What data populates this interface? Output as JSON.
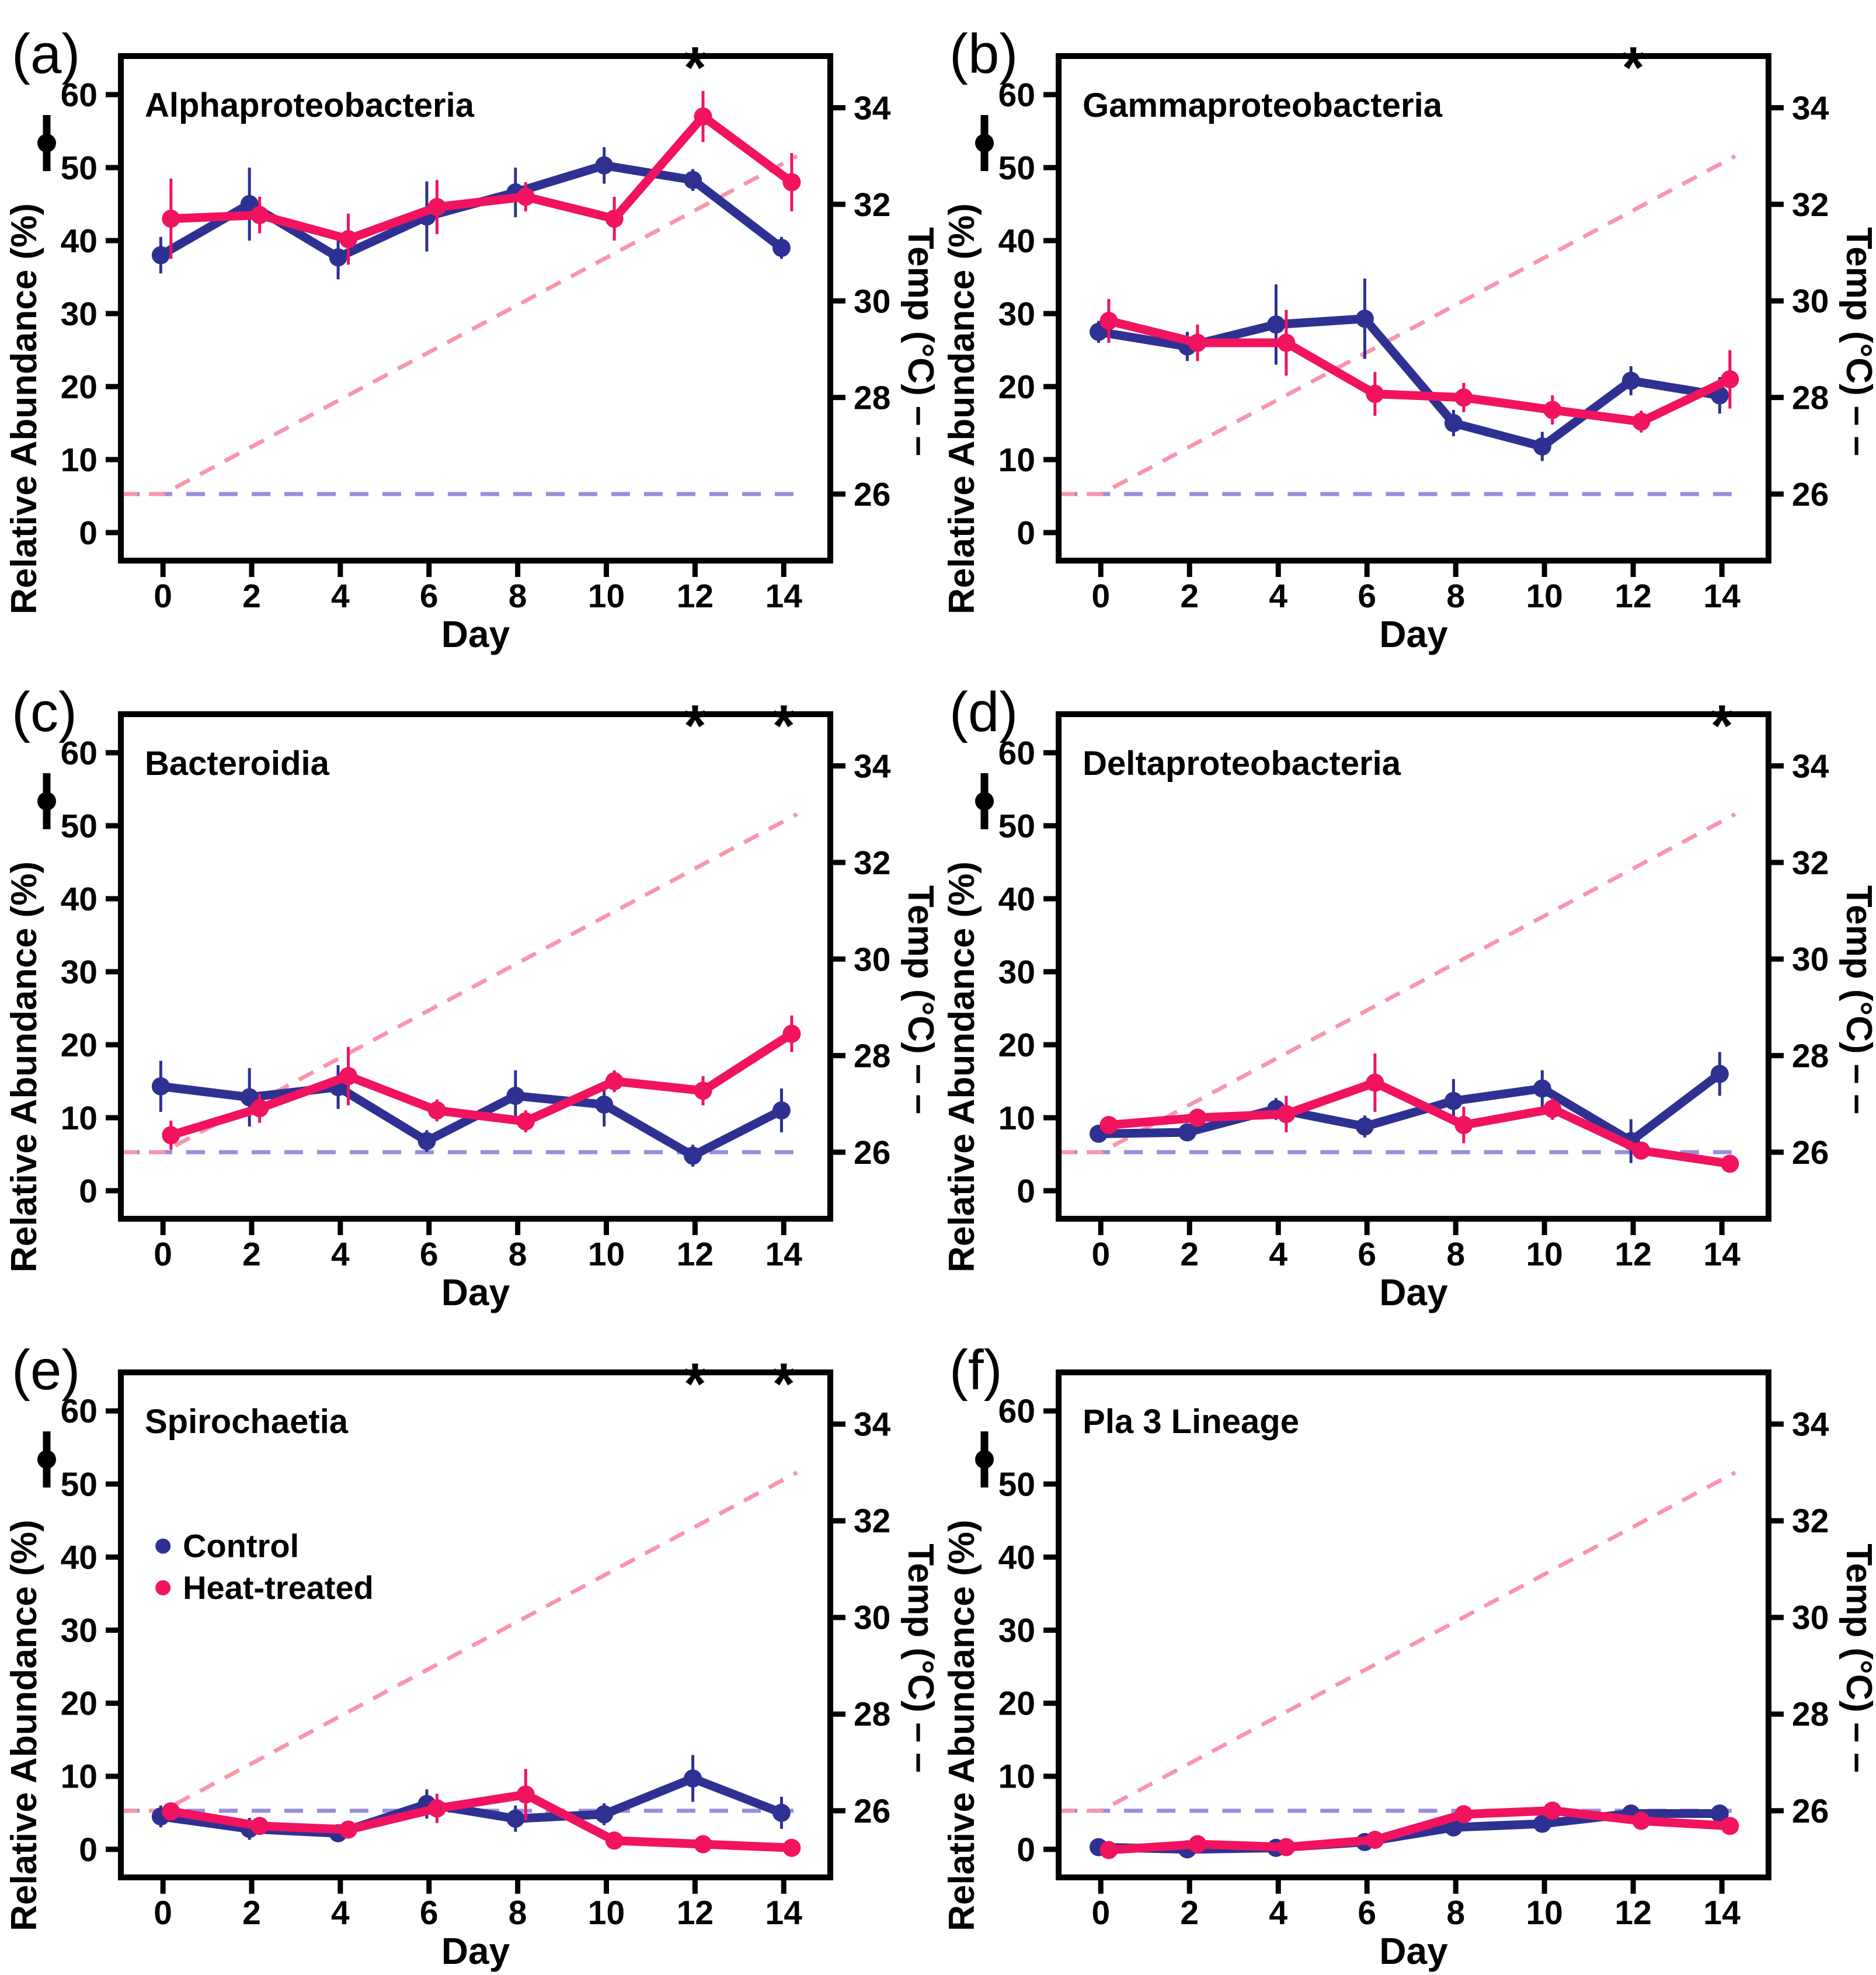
{
  "axes": {
    "xlabel": "Day",
    "ylabel": "Relative Abundance (%)",
    "y2label": "Temp (°C) – –",
    "xticks": [
      0,
      2,
      4,
      6,
      8,
      10,
      12,
      14
    ],
    "yticks": [
      0,
      10,
      20,
      30,
      40,
      50,
      60
    ],
    "y2ticks": [
      26,
      28,
      30,
      32,
      34
    ],
    "xlim": [
      -0.95,
      15.05
    ],
    "ylim": [
      -3.84,
      65.3
    ],
    "grid": false,
    "y2_mapping": {
      "abundance_at_26C": 5.28,
      "abundance_per_degC": 6.615
    }
  },
  "colors": {
    "control": "#2e3192",
    "heat_treated": "#f1135f",
    "temp_ramp": "#f996ab",
    "temp_constant": "#998eda",
    "axis": "#000000"
  },
  "legend": {
    "panel": "(e)",
    "position": "upper-left",
    "items": [
      {
        "label": "Control",
        "color": "#2e3192"
      },
      {
        "label": "Heat-treated",
        "color": "#f1135f"
      }
    ]
  },
  "errorbar_key_icon": "point-with-error-bar-icon",
  "temperature": {
    "ramp": {
      "x": [
        -0.95,
        0,
        14.3
      ],
      "temp_c": [
        26,
        26,
        33
      ],
      "style": "dashed",
      "color": "#f996ab"
    },
    "constant": {
      "x": [
        -0.95,
        14.3
      ],
      "temp_c": [
        26,
        26
      ],
      "style": "dashed",
      "color": "#998eda"
    }
  },
  "chart_data": [
    {
      "type": "line",
      "panel_tag": "(a)",
      "title": "Alphaproteobacteria",
      "x": [
        0,
        2,
        4,
        6,
        8,
        10,
        12,
        14
      ],
      "significance_days": [
        12
      ],
      "show_legend": false,
      "series": [
        {
          "name": "Control",
          "color": "#2e3192",
          "values": [
            38,
            45,
            37.7,
            43.3,
            46.6,
            50.3,
            48.3,
            39
          ],
          "errors": [
            2.5,
            5,
            3,
            4.8,
            3.4,
            2.5,
            1.5,
            1.5
          ]
        },
        {
          "name": "Heat-treated",
          "color": "#f1135f",
          "values": [
            43,
            43.5,
            40.2,
            44.6,
            46,
            43,
            57,
            48
          ],
          "errors": [
            5.5,
            2.5,
            3.5,
            3.7,
            2,
            3,
            3.5,
            4
          ]
        }
      ]
    },
    {
      "type": "line",
      "panel_tag": "(b)",
      "title": "Gammaproteobacteria",
      "x": [
        0,
        2,
        4,
        6,
        8,
        10,
        12,
        14
      ],
      "significance_days": [
        12
      ],
      "show_legend": false,
      "series": [
        {
          "name": "Control",
          "color": "#2e3192",
          "values": [
            27.5,
            25.5,
            28.5,
            29.3,
            15,
            11.8,
            20.8,
            18.8
          ],
          "errors": [
            1.5,
            2,
            5.5,
            5.5,
            1.8,
            2,
            2,
            2.5
          ]
        },
        {
          "name": "Heat-treated",
          "color": "#f1135f",
          "values": [
            29,
            26,
            26,
            19,
            18.5,
            16.8,
            15.2,
            21
          ],
          "errors": [
            3,
            2.5,
            4.5,
            3,
            2,
            2,
            1.5,
            4
          ]
        }
      ]
    },
    {
      "type": "line",
      "panel_tag": "(c)",
      "title": "Bacteroidia",
      "x": [
        0,
        2,
        4,
        6,
        8,
        10,
        12,
        14
      ],
      "significance_days": [
        12,
        14
      ],
      "show_legend": false,
      "series": [
        {
          "name": "Control",
          "color": "#2e3192",
          "values": [
            14.3,
            12.8,
            14.2,
            6.8,
            13,
            11.8,
            4.8,
            11
          ],
          "errors": [
            3.5,
            4,
            3,
            1.5,
            3.5,
            3,
            1.5,
            3
          ]
        },
        {
          "name": "Heat-treated",
          "color": "#f1135f",
          "values": [
            7.6,
            11.3,
            15.7,
            11,
            9.5,
            15,
            13.7,
            21.5
          ],
          "errors": [
            2,
            2,
            4,
            1.5,
            1.5,
            1.5,
            2,
            2.5
          ]
        }
      ]
    },
    {
      "type": "line",
      "panel_tag": "(d)",
      "title": "Deltaproteobacteria",
      "x": [
        0,
        2,
        4,
        6,
        8,
        10,
        12,
        14
      ],
      "significance_days": [
        14
      ],
      "show_legend": false,
      "series": [
        {
          "name": "Control",
          "color": "#2e3192",
          "values": [
            7.8,
            8,
            11.2,
            8.8,
            12.3,
            14,
            6.8,
            16
          ],
          "errors": [
            1,
            1,
            1.5,
            1.5,
            3,
            2.5,
            3,
            3
          ]
        },
        {
          "name": "Heat-treated",
          "color": "#f1135f",
          "values": [
            9,
            10,
            10.5,
            14.8,
            9,
            11.2,
            5.5,
            3.7
          ],
          "errors": [
            1,
            1,
            2.5,
            4,
            2.5,
            1.5,
            1,
            1
          ]
        }
      ]
    },
    {
      "type": "line",
      "panel_tag": "(e)",
      "title": "Spirochaetia",
      "x": [
        0,
        2,
        4,
        6,
        8,
        10,
        12,
        14
      ],
      "significance_days": [
        12,
        14
      ],
      "show_legend": true,
      "series": [
        {
          "name": "Control",
          "color": "#2e3192",
          "values": [
            4.5,
            2.8,
            2.2,
            6.2,
            4.2,
            4.8,
            9.7,
            5
          ],
          "errors": [
            1.5,
            1.5,
            0.5,
            2,
            1.8,
            1.5,
            3.2,
            2.2
          ]
        },
        {
          "name": "Heat-treated",
          "color": "#f1135f",
          "values": [
            5.2,
            3.2,
            2.7,
            5.6,
            7.5,
            1.2,
            0.7,
            0.2
          ],
          "errors": [
            1,
            1,
            0.8,
            2,
            3.5,
            0.5,
            0.5,
            0.3
          ]
        }
      ]
    },
    {
      "type": "line",
      "panel_tag": "(f)",
      "title": "Pla 3 Lineage",
      "x": [
        0,
        2,
        4,
        6,
        8,
        10,
        12,
        14
      ],
      "significance_days": [],
      "show_legend": false,
      "series": [
        {
          "name": "Control",
          "color": "#2e3192",
          "values": [
            0.3,
            0,
            0.2,
            1.0,
            3.0,
            3.5,
            4.9,
            4.9
          ],
          "errors": [
            0.5,
            0.4,
            0.4,
            0.5,
            0.6,
            0.6,
            0.5,
            0.5
          ]
        },
        {
          "name": "Heat-treated",
          "color": "#f1135f",
          "values": [
            -0.1,
            0.7,
            0.3,
            1.3,
            4.8,
            5.3,
            3.9,
            3.2
          ],
          "errors": [
            0.4,
            0.5,
            0.5,
            0.6,
            0.8,
            0.7,
            0.6,
            0.6
          ]
        }
      ]
    }
  ]
}
